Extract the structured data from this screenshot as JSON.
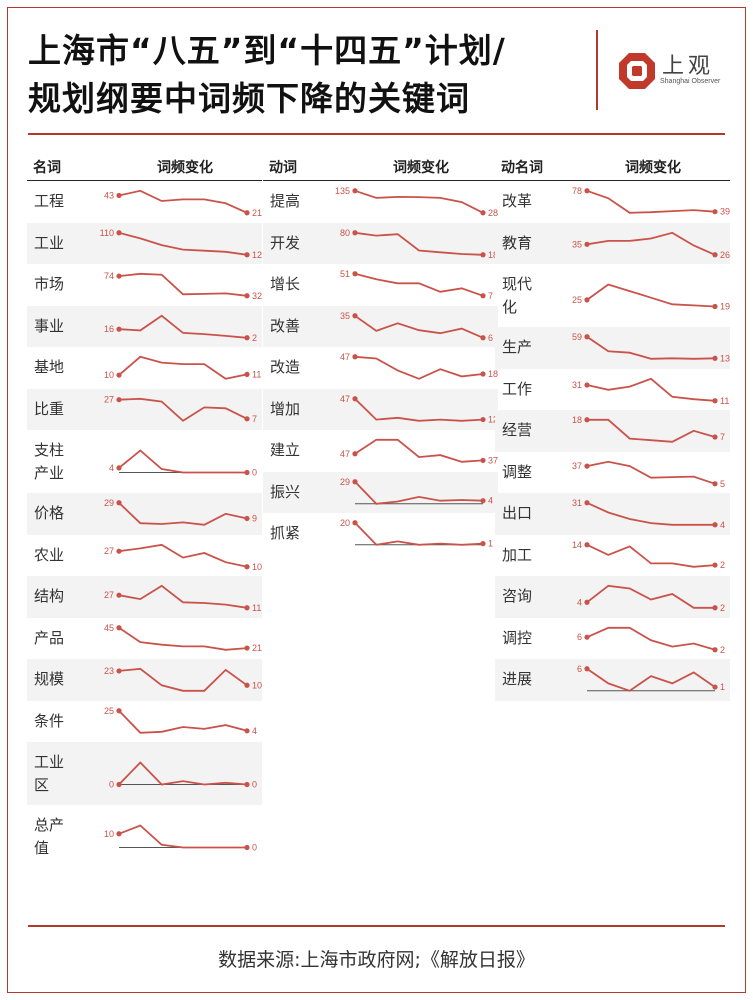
{
  "title": {
    "line1": "上海市“八五”到“十四五”计划/",
    "line2": "规划纲要中词频下降的关键词"
  },
  "logo": {
    "text": "上观",
    "subtitle": "Shanghai Observer"
  },
  "source": "数据来源:上海市政府网;《解放日报》",
  "colors": {
    "accent": "#b3382e",
    "line": "#c9534a",
    "shade": "#f3f3f3"
  },
  "chart_data": [
    {
      "type": "line",
      "category": "名词",
      "metric_label": "词频变化",
      "items": [
        {
          "word": "工程",
          "start": 43,
          "end": 21,
          "series": [
            43,
            49,
            36,
            38,
            38,
            33,
            21
          ]
        },
        {
          "word": "工业",
          "start": 110,
          "end": 12,
          "series": [
            110,
            85,
            55,
            35,
            30,
            25,
            12
          ]
        },
        {
          "word": "市场",
          "start": 74,
          "end": 32,
          "series": [
            74,
            79,
            77,
            35,
            36,
            37,
            32
          ]
        },
        {
          "word": "事业",
          "start": 16,
          "end": 2,
          "series": [
            16,
            14,
            38,
            10,
            8,
            5,
            2
          ]
        },
        {
          "word": "基地",
          "start": 10,
          "end": 11,
          "series": [
            10,
            35,
            27,
            25,
            25,
            5,
            11
          ]
        },
        {
          "word": "比重",
          "start": 27,
          "end": 7,
          "series": [
            27,
            28,
            25,
            5,
            19,
            18,
            7
          ]
        },
        {
          "word": "支柱产业",
          "start": 4,
          "end": 0,
          "series": [
            4,
            19,
            3,
            0,
            0,
            0,
            0
          ]
        },
        {
          "word": "价格",
          "start": 29,
          "end": 9,
          "series": [
            29,
            3,
            2,
            4,
            1,
            15,
            9
          ]
        },
        {
          "word": "农业",
          "start": 27,
          "end": 10,
          "series": [
            27,
            30,
            34,
            20,
            25,
            15,
            10
          ]
        },
        {
          "word": "结构",
          "start": 27,
          "end": 11,
          "series": [
            27,
            22,
            39,
            18,
            17,
            15,
            11
          ]
        },
        {
          "word": "产品",
          "start": 45,
          "end": 21,
          "series": [
            45,
            28,
            25,
            23,
            23,
            19,
            21
          ]
        },
        {
          "word": "规模",
          "start": 23,
          "end": 10,
          "series": [
            23,
            25,
            10,
            5,
            5,
            24,
            10
          ]
        },
        {
          "word": "条件",
          "start": 25,
          "end": 4,
          "series": [
            25,
            2,
            3,
            8,
            6,
            10,
            4
          ]
        },
        {
          "word": "工业区",
          "start": 0,
          "end": 0,
          "series": [
            0,
            13,
            0,
            2,
            0,
            1,
            0
          ]
        },
        {
          "word": "总产值",
          "start": 10,
          "end": 0,
          "series": [
            10,
            16,
            2,
            0,
            0,
            0,
            0
          ]
        }
      ]
    },
    {
      "type": "line",
      "category": "动词",
      "metric_label": "词频变化",
      "items": [
        {
          "word": "提高",
          "start": 135,
          "end": 28,
          "series": [
            135,
            100,
            105,
            104,
            100,
            80,
            28
          ]
        },
        {
          "word": "开发",
          "start": 80,
          "end": 18,
          "series": [
            80,
            72,
            76,
            30,
            25,
            20,
            18
          ]
        },
        {
          "word": "增长",
          "start": 51,
          "end": 7,
          "series": [
            51,
            40,
            32,
            32,
            15,
            22,
            7
          ]
        },
        {
          "word": "改善",
          "start": 35,
          "end": 6,
          "series": [
            35,
            15,
            25,
            16,
            12,
            18,
            6
          ]
        },
        {
          "word": "改造",
          "start": 47,
          "end": 18,
          "series": [
            47,
            44,
            24,
            10,
            26,
            14,
            18
          ]
        },
        {
          "word": "增加",
          "start": 47,
          "end": 12,
          "series": [
            47,
            12,
            15,
            10,
            12,
            10,
            12
          ]
        },
        {
          "word": "建立",
          "start": 47,
          "end": 37,
          "series": [
            47,
            68,
            68,
            42,
            45,
            35,
            37
          ]
        },
        {
          "word": "振兴",
          "start": 29,
          "end": 4,
          "series": [
            29,
            0,
            3,
            9,
            4,
            5,
            4
          ]
        },
        {
          "word": "抓紧",
          "start": 20,
          "end": 1,
          "series": [
            20,
            0,
            3,
            0,
            1,
            0,
            1
          ]
        }
      ]
    },
    {
      "type": "line",
      "category": "动名词",
      "metric_label": "词频变化",
      "items": [
        {
          "word": "改革",
          "start": 78,
          "end": 39,
          "series": [
            78,
            64,
            37,
            38,
            40,
            42,
            39
          ]
        },
        {
          "word": "教育",
          "start": 35,
          "end": 26,
          "series": [
            35,
            38,
            38,
            40,
            45,
            34,
            26
          ]
        },
        {
          "word": "现代化",
          "start": 25,
          "end": 19,
          "series": [
            25,
            39,
            33,
            27,
            21,
            20,
            19
          ]
        },
        {
          "word": "生产",
          "start": 59,
          "end": 13,
          "series": [
            59,
            28,
            25,
            12,
            13,
            12,
            13
          ]
        },
        {
          "word": "工作",
          "start": 31,
          "end": 11,
          "series": [
            31,
            25,
            29,
            39,
            16,
            13,
            11
          ]
        },
        {
          "word": "经营",
          "start": 18,
          "end": 7,
          "series": [
            18,
            18,
            6,
            5,
            4,
            11,
            7
          ]
        },
        {
          "word": "调整",
          "start": 37,
          "end": 5,
          "series": [
            37,
            45,
            37,
            16,
            17,
            18,
            5
          ]
        },
        {
          "word": "出口",
          "start": 31,
          "end": 4,
          "series": [
            31,
            19,
            11,
            6,
            4,
            4,
            4
          ]
        },
        {
          "word": "加工",
          "start": 14,
          "end": 2,
          "series": [
            14,
            8,
            13,
            3,
            3,
            1,
            2
          ]
        },
        {
          "word": "咨询",
          "start": 4,
          "end": 2,
          "series": [
            4,
            10,
            9,
            5,
            7,
            2,
            2
          ]
        },
        {
          "word": "调控",
          "start": 6,
          "end": 2,
          "series": [
            6,
            9,
            9,
            5,
            3,
            4,
            2
          ]
        },
        {
          "word": "进展",
          "start": 6,
          "end": 1,
          "series": [
            6,
            2,
            0,
            4,
            2,
            5,
            1
          ]
        }
      ]
    }
  ]
}
